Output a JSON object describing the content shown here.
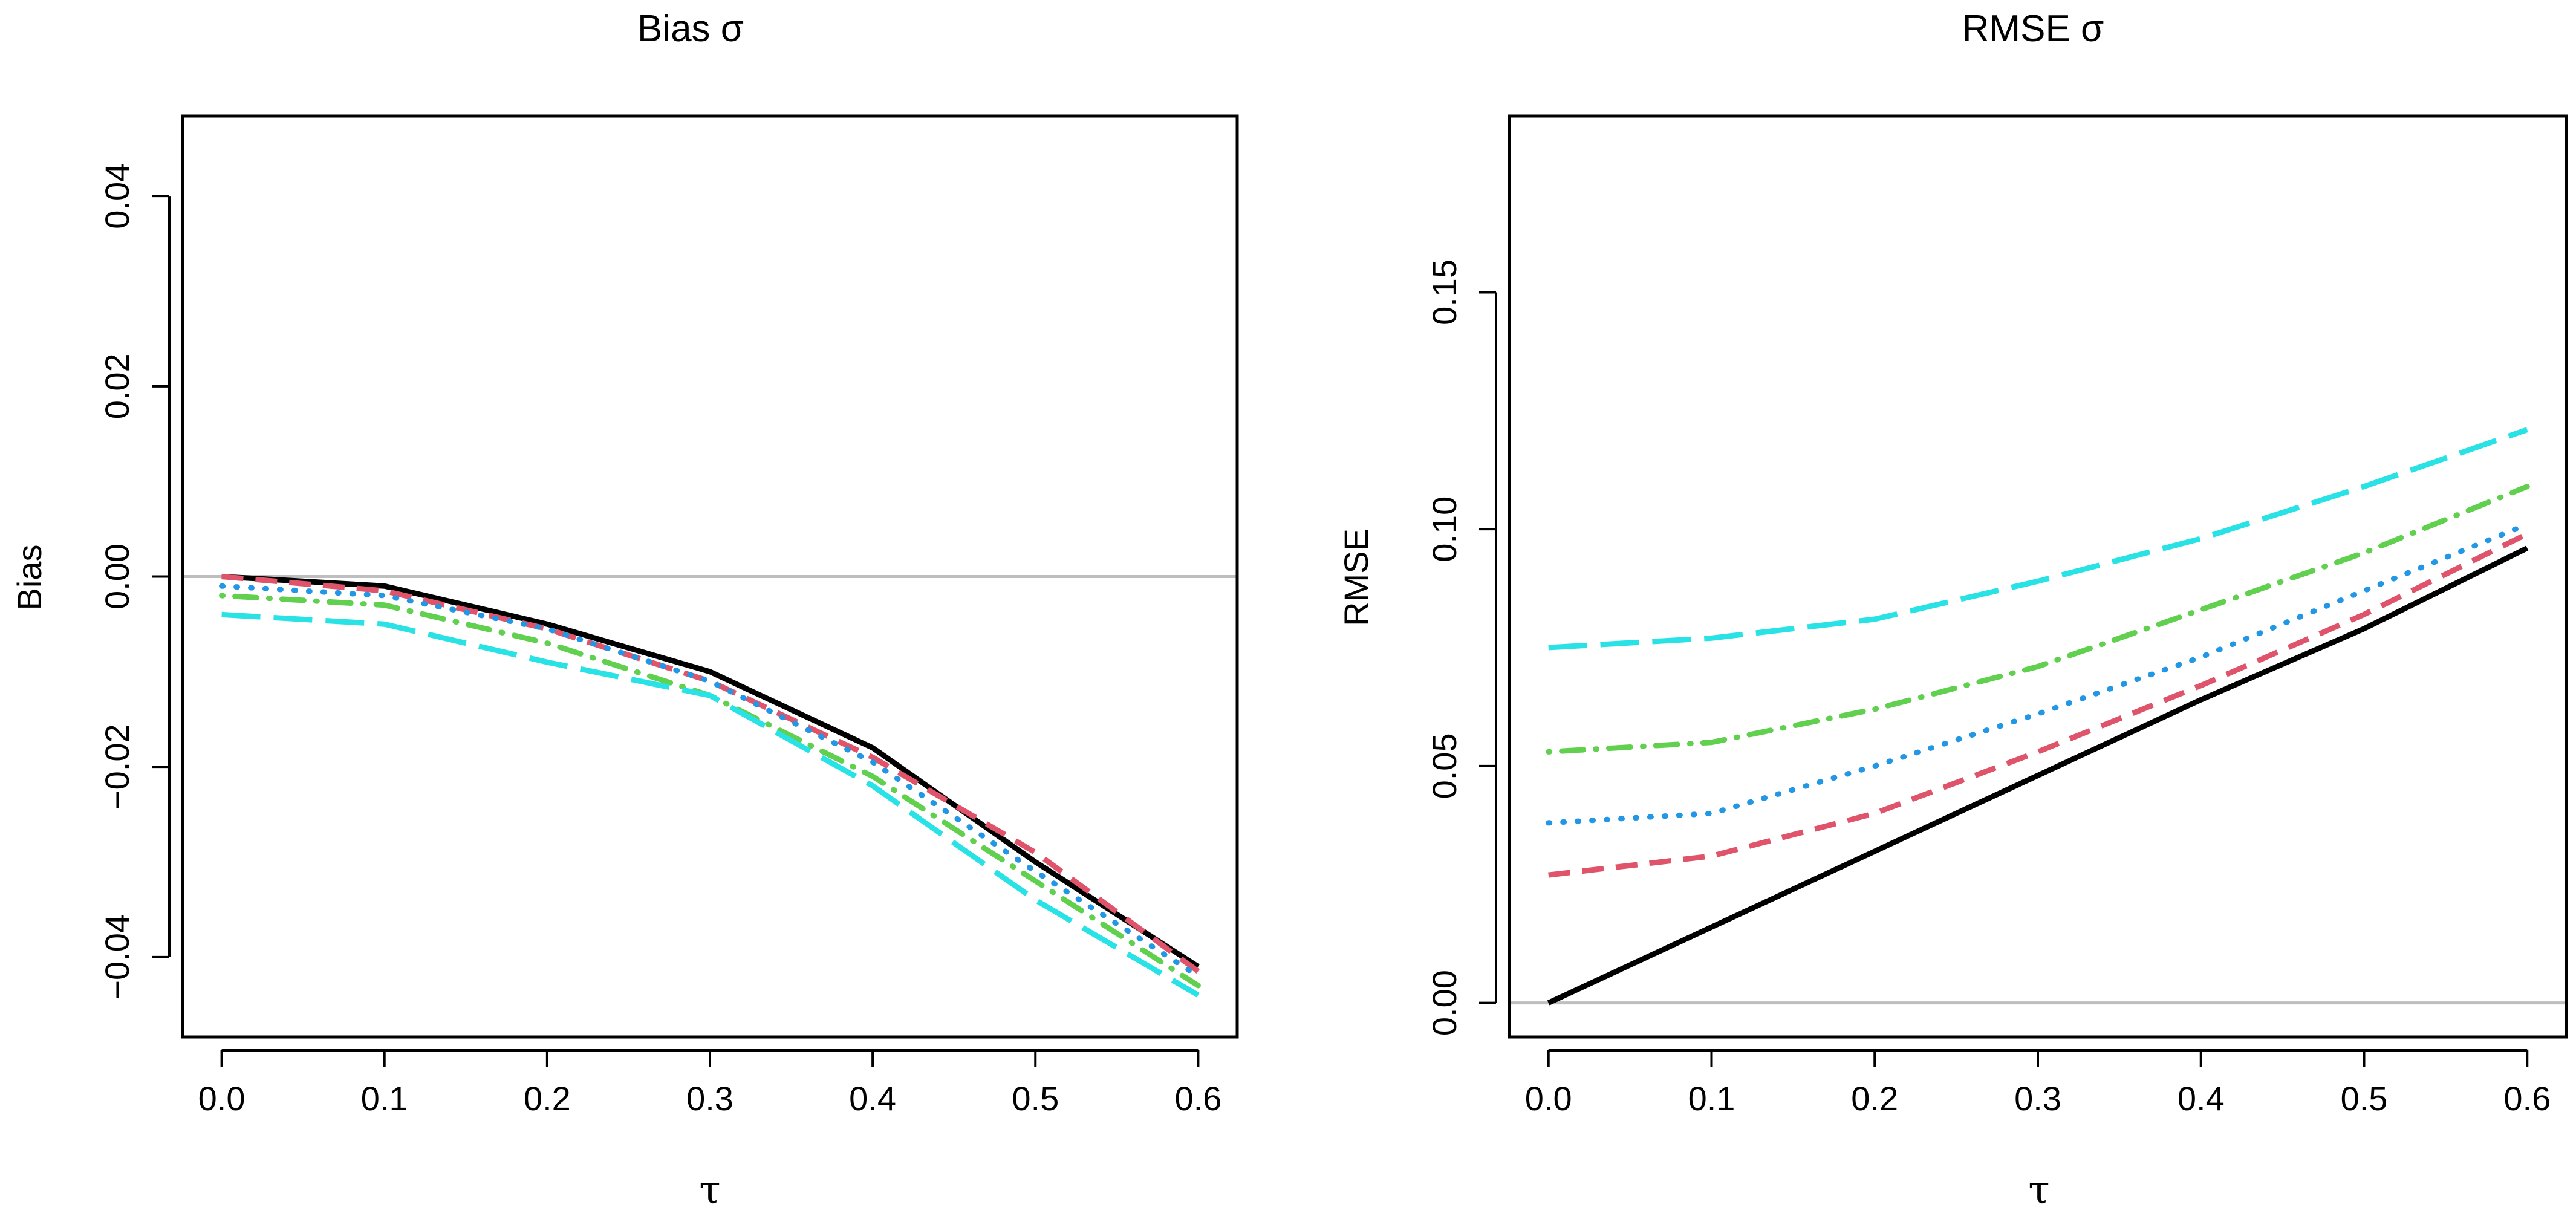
{
  "chart_data": [
    {
      "type": "line",
      "title": "Bias σ",
      "xlabel": "τ",
      "ylabel": "Bias",
      "xlim": [
        -0.024,
        0.624
      ],
      "ylim": [
        -0.0484,
        0.0484
      ],
      "x_ticks": [
        0.0,
        0.1,
        0.2,
        0.3,
        0.4,
        0.5,
        0.6
      ],
      "x_tick_labels": [
        "0.0",
        "0.1",
        "0.2",
        "0.3",
        "0.4",
        "0.5",
        "0.6"
      ],
      "y_ticks": [
        -0.04,
        -0.02,
        0.0,
        0.02,
        0.04
      ],
      "y_tick_labels": [
        "−0.04",
        "−0.02",
        "0.00",
        "0.02",
        "0.04"
      ],
      "reference_line": 0.0,
      "grid": false,
      "x": [
        0.0,
        0.1,
        0.2,
        0.3,
        0.4,
        0.5,
        0.6
      ],
      "series": [
        {
          "name": "black solid",
          "color": "#000000",
          "dash": "solid",
          "values": [
            0.0,
            -0.001,
            -0.005,
            -0.01,
            -0.018,
            -0.03,
            -0.041
          ]
        },
        {
          "name": "red dashed",
          "color": "#DF536B",
          "dash": "dashed",
          "values": [
            0.0,
            -0.0015,
            -0.0055,
            -0.011,
            -0.019,
            -0.029,
            -0.0415
          ]
        },
        {
          "name": "blue dotted",
          "color": "#2297E6",
          "dash": "dotted",
          "values": [
            -0.001,
            -0.002,
            -0.0055,
            -0.011,
            -0.0195,
            -0.031,
            -0.042
          ]
        },
        {
          "name": "green dot-dash",
          "color": "#61D04F",
          "dash": "dotdash",
          "values": [
            -0.002,
            -0.003,
            -0.007,
            -0.0125,
            -0.021,
            -0.032,
            -0.043
          ]
        },
        {
          "name": "cyan long-dash",
          "color": "#28E2E5",
          "dash": "longdash",
          "values": [
            -0.004,
            -0.005,
            -0.009,
            -0.0125,
            -0.022,
            -0.034,
            -0.044
          ]
        }
      ]
    },
    {
      "type": "line",
      "title": "RMSE σ",
      "xlabel": "τ",
      "ylabel": "RMSE",
      "xlim": [
        -0.024,
        0.624
      ],
      "ylim": [
        -0.0072,
        0.1872
      ],
      "x_ticks": [
        0.0,
        0.1,
        0.2,
        0.3,
        0.4,
        0.5,
        0.6
      ],
      "x_tick_labels": [
        "0.0",
        "0.1",
        "0.2",
        "0.3",
        "0.4",
        "0.5",
        "0.6"
      ],
      "y_ticks": [
        0.0,
        0.05,
        0.1,
        0.15
      ],
      "y_tick_labels": [
        "0.00",
        "0.05",
        "0.10",
        "0.15"
      ],
      "reference_line": 0.0,
      "grid": false,
      "x": [
        0.0,
        0.1,
        0.2,
        0.3,
        0.4,
        0.5,
        0.6
      ],
      "series": [
        {
          "name": "black solid",
          "color": "#000000",
          "dash": "solid",
          "values": [
            0.0,
            0.016,
            0.032,
            0.048,
            0.064,
            0.079,
            0.096
          ]
        },
        {
          "name": "red dashed",
          "color": "#DF536B",
          "dash": "dashed",
          "values": [
            0.027,
            0.031,
            0.04,
            0.053,
            0.067,
            0.082,
            0.099
          ]
        },
        {
          "name": "blue dotted",
          "color": "#2297E6",
          "dash": "dotted",
          "values": [
            0.038,
            0.04,
            0.05,
            0.061,
            0.073,
            0.087,
            0.101
          ]
        },
        {
          "name": "green dot-dash",
          "color": "#61D04F",
          "dash": "dotdash",
          "values": [
            0.053,
            0.055,
            0.062,
            0.071,
            0.083,
            0.095,
            0.109
          ]
        },
        {
          "name": "cyan long-dash",
          "color": "#28E2E5",
          "dash": "longdash",
          "values": [
            0.075,
            0.077,
            0.081,
            0.089,
            0.098,
            0.109,
            0.121
          ]
        }
      ]
    }
  ]
}
